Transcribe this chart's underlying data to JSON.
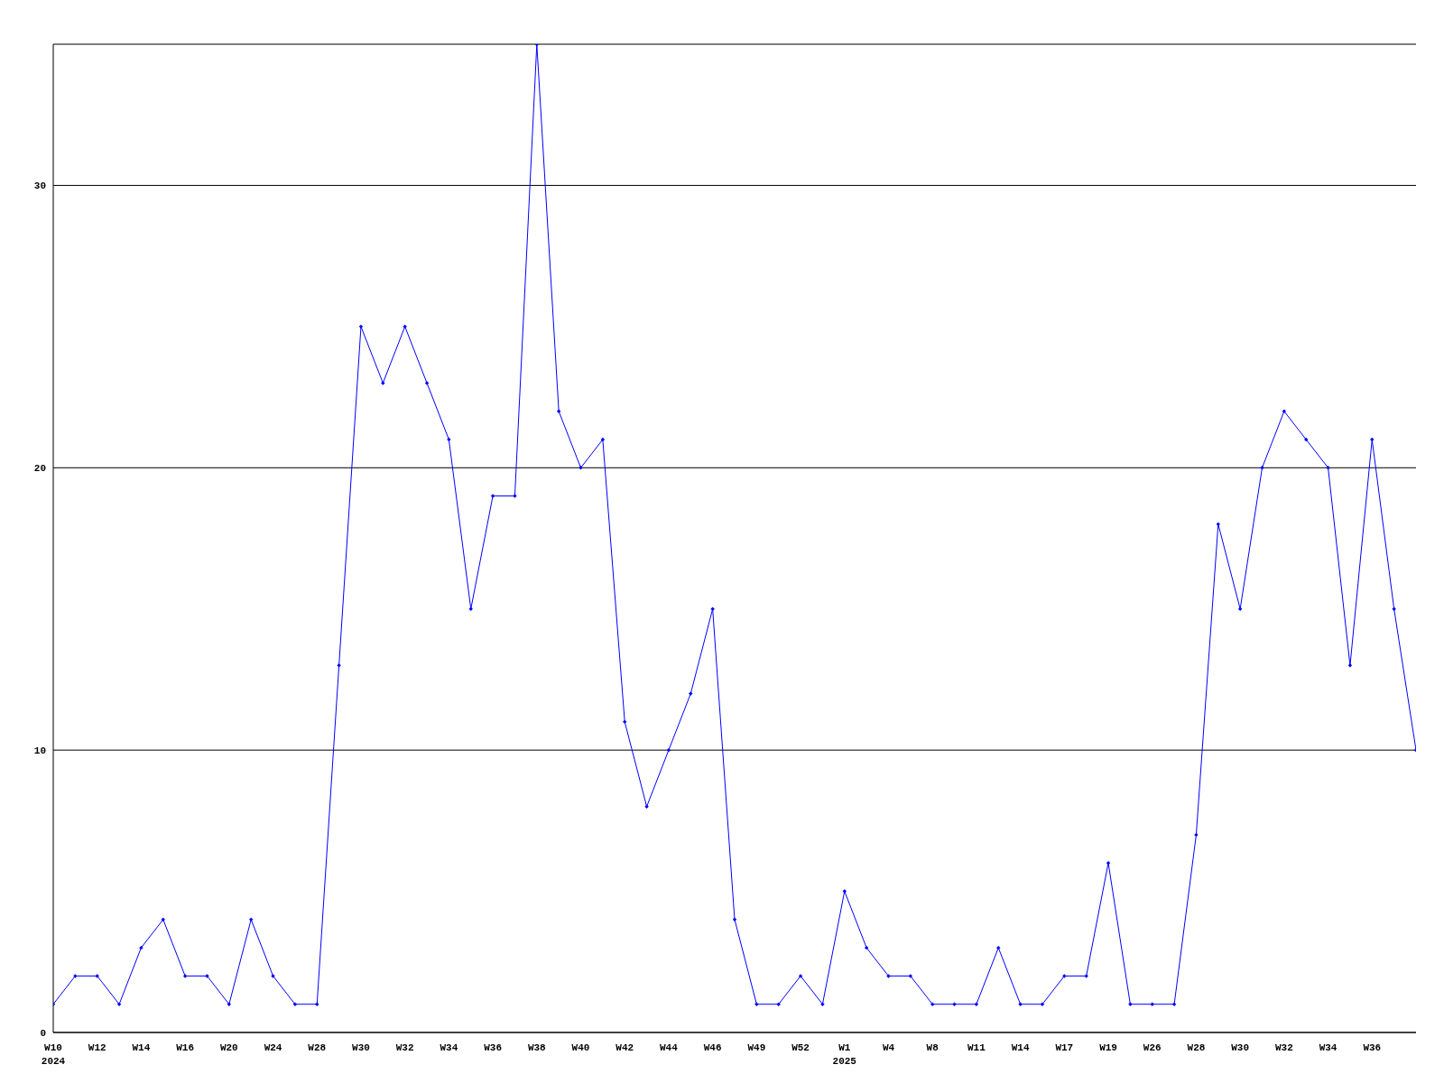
{
  "chart_data": {
    "type": "line",
    "categories": [
      "W10",
      null,
      "W12",
      null,
      "W14",
      null,
      "W16",
      null,
      "W20",
      null,
      "W24",
      null,
      "W28",
      null,
      "W30",
      null,
      "W32",
      null,
      "W34",
      null,
      "W36",
      null,
      "W38",
      null,
      "W40",
      null,
      "W42",
      null,
      "W44",
      null,
      "W46",
      null,
      "W49",
      null,
      "W52",
      null,
      "W1",
      null,
      "W4",
      null,
      "W8",
      null,
      "W11",
      null,
      "W14",
      null,
      "W17",
      null,
      "W19",
      null,
      "W26",
      null,
      "W28",
      null,
      "W30",
      null,
      "W32",
      null,
      "W34",
      null,
      "W36",
      null,
      null
    ],
    "series": [
      {
        "color": "#0000ff",
        "values": [
          1,
          2,
          2,
          1,
          3,
          4,
          2,
          2,
          1,
          4,
          2,
          1,
          1,
          13,
          25,
          23,
          25,
          23,
          21,
          15,
          19,
          19,
          35,
          22,
          20,
          21,
          11,
          8,
          10,
          12,
          15,
          4,
          1,
          1,
          2,
          1,
          5,
          3,
          2,
          2,
          1,
          1,
          1,
          3,
          1,
          1,
          2,
          2,
          6,
          1,
          1,
          1,
          7,
          18,
          15,
          20,
          22,
          21,
          20,
          13,
          21,
          15,
          10
        ]
      }
    ],
    "annotations": [
      "2024",
      "2025"
    ],
    "ylim": [
      0,
      35
    ],
    "yticks": [
      0,
      10,
      20,
      30
    ],
    "grid": "y",
    "marker": "diamond",
    "line_style": "solid"
  }
}
